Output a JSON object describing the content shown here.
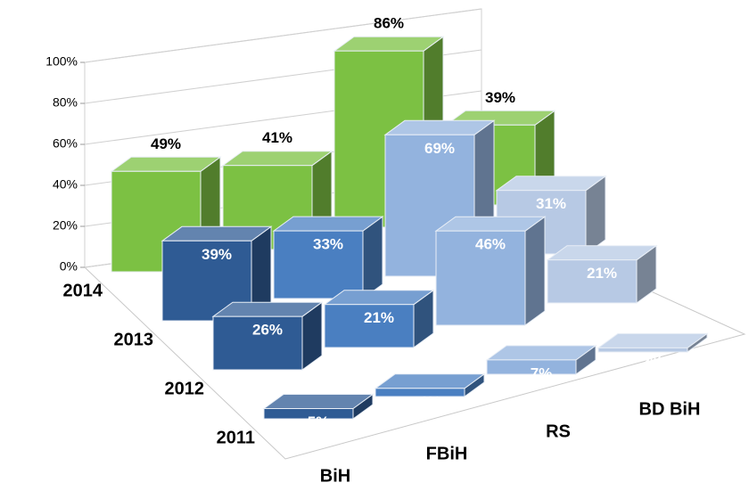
{
  "chart_data": {
    "type": "bar3d",
    "categories": [
      "BiH",
      "FBiH",
      "RS",
      "BD BiH"
    ],
    "series": [
      {
        "name": "2014",
        "colors": [
          "#7cc143",
          "#7cc143",
          "#7cc143",
          "#7cc143"
        ],
        "values": [
          49,
          41,
          86,
          39
        ],
        "value_labels": [
          "49%",
          "41%",
          "86%",
          "39%"
        ]
      },
      {
        "name": "2013",
        "colors": [
          "#2f5b94",
          "#4a7fc1",
          "#93b3de",
          "#b7c9e4"
        ],
        "values": [
          39,
          33,
          69,
          31
        ],
        "value_labels": [
          "39%",
          "33%",
          "69%",
          "31%"
        ]
      },
      {
        "name": "2012",
        "colors": [
          "#2f5b94",
          "#4a7fc1",
          "#93b3de",
          "#b7c9e4"
        ],
        "values": [
          26,
          21,
          46,
          21
        ],
        "value_labels": [
          "26%",
          "21%",
          "46%",
          "21%"
        ]
      },
      {
        "name": "2011",
        "colors": [
          "#2f5b94",
          "#4a7fc1",
          "#93b3de",
          "#b7c9e4"
        ],
        "values": [
          5,
          4,
          7,
          2
        ],
        "value_labels": [
          "5%",
          "4%",
          "7%",
          "2%"
        ]
      }
    ],
    "ylim": [
      0,
      100
    ],
    "yticks": [
      {
        "value": 0,
        "label": "0%"
      },
      {
        "value": 20,
        "label": "20%"
      },
      {
        "value": 40,
        "label": "40%"
      },
      {
        "value": 60,
        "label": "60%"
      },
      {
        "value": 80,
        "label": "80%"
      },
      {
        "value": 100,
        "label": "100%"
      }
    ],
    "grid": true
  }
}
